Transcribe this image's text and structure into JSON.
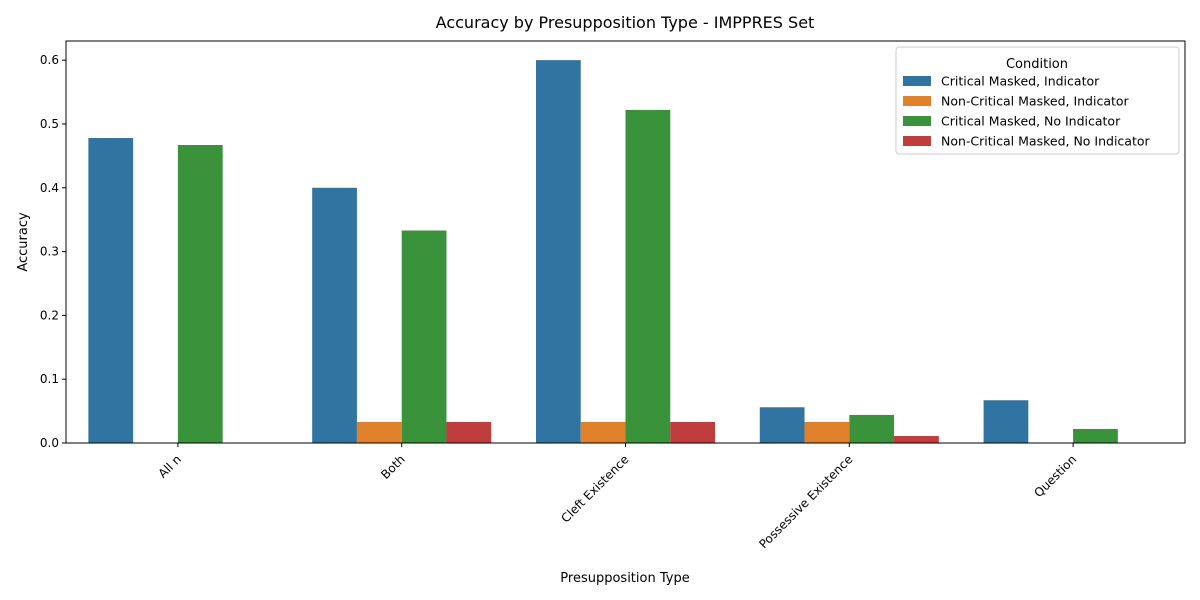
{
  "chart_data": {
    "type": "bar",
    "title": "Accuracy by Presupposition Type - IMPPRES Set",
    "xlabel": "Presupposition Type",
    "ylabel": "Accuracy",
    "ylim": [
      0,
      0.63
    ],
    "yticks": [
      "0.0",
      "0.1",
      "0.2",
      "0.3",
      "0.4",
      "0.5",
      "0.6"
    ],
    "categories": [
      "All n",
      "Both",
      "Cleft Existence",
      "Possessive Existence",
      "Question"
    ],
    "legend": {
      "title": "Condition",
      "placement": "top-right"
    },
    "grid": false,
    "series": [
      {
        "name": "Critical Masked, Indicator",
        "color": "#3274a1",
        "values": [
          0.478,
          0.4,
          0.6,
          0.056,
          0.067
        ]
      },
      {
        "name": "Non-Critical Masked, Indicator",
        "color": "#e1812c",
        "values": [
          0.0,
          0.033,
          0.033,
          0.033,
          0.0
        ]
      },
      {
        "name": "Critical Masked, No Indicator",
        "color": "#3a923a",
        "values": [
          0.467,
          0.333,
          0.522,
          0.044,
          0.022
        ]
      },
      {
        "name": "Non-Critical Masked, No Indicator",
        "color": "#c03d3e",
        "values": [
          0.0,
          0.033,
          0.033,
          0.011,
          0.0
        ]
      }
    ]
  }
}
